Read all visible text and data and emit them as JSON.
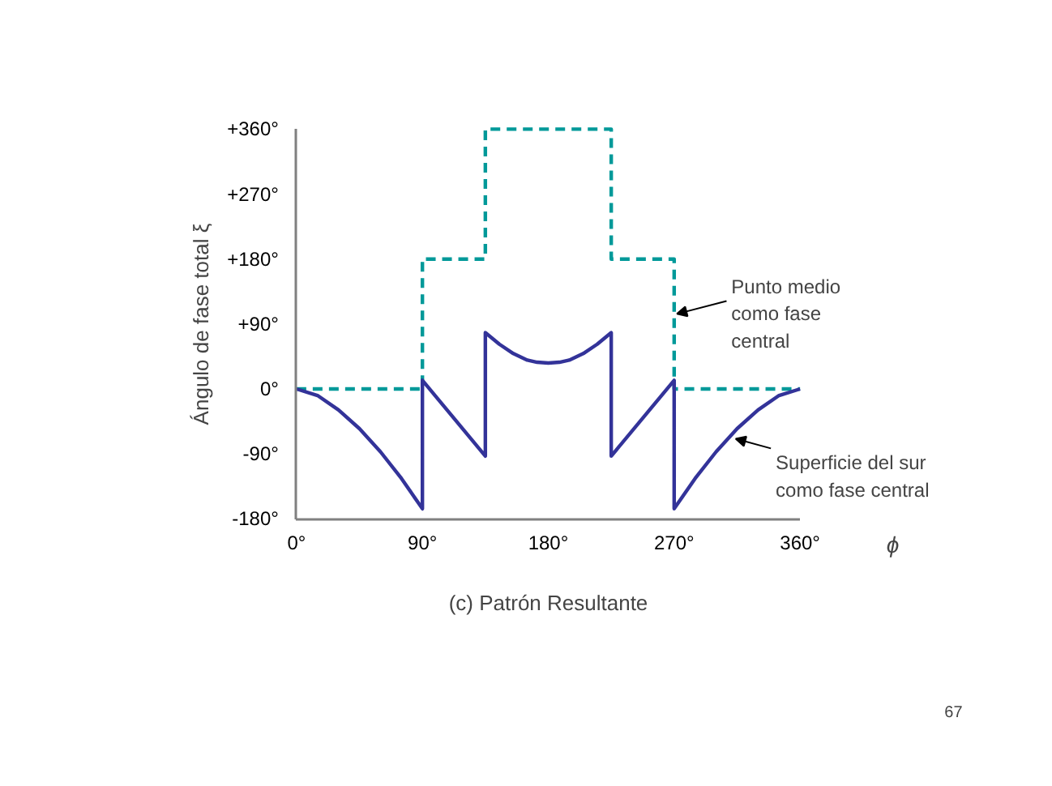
{
  "chart_data": {
    "type": "line",
    "title": "(c) Patrón Resultante",
    "xlabel": "ϕ",
    "ylabel": "Ángulo de fase total ξ",
    "xlim": [
      0,
      360
    ],
    "ylim": [
      -180,
      360
    ],
    "xticks": [
      {
        "value": 0,
        "label": "0°"
      },
      {
        "value": 90,
        "label": "90°"
      },
      {
        "value": 180,
        "label": "180°"
      },
      {
        "value": 270,
        "label": "270°"
      },
      {
        "value": 360,
        "label": "360°"
      }
    ],
    "yticks": [
      {
        "value": -180,
        "label": "-180°"
      },
      {
        "value": -90,
        "label": "-90°"
      },
      {
        "value": 0,
        "label": "0°"
      },
      {
        "value": 90,
        "label": "+90°"
      },
      {
        "value": 180,
        "label": "+180°"
      },
      {
        "value": 270,
        "label": "+270°"
      },
      {
        "value": 360,
        "label": "+360°"
      }
    ],
    "grid": false,
    "marker": "none",
    "series": [
      {
        "color": "#009999",
        "line_style": "dashed",
        "x": [
          0,
          90,
          90,
          135,
          135,
          225,
          225,
          270,
          270,
          360
        ],
        "values": [
          0,
          0,
          180,
          180,
          360,
          360,
          180,
          180,
          0,
          0
        ]
      },
      {
        "color": "#333399",
        "line_style": "solid",
        "x": [
          0,
          15,
          30,
          45,
          60,
          75,
          90,
          90,
          135,
          135,
          145,
          155,
          165,
          172,
          180,
          188,
          195,
          205,
          215,
          225,
          225,
          270,
          270,
          285,
          300,
          315,
          330,
          345,
          360
        ],
        "values": [
          0,
          -9,
          -29,
          -55,
          -87,
          -124,
          -166,
          12,
          -93,
          78,
          62,
          49,
          40,
          37,
          36,
          37,
          40,
          49,
          62,
          78,
          -93,
          12,
          -166,
          -124,
          -87,
          -55,
          -29,
          -9,
          0
        ]
      }
    ],
    "annotations": [
      {
        "text": "Punto medio\ncomo fase\ncentral",
        "x": 272,
        "y": 104
      },
      {
        "text": "Superficie del sur\ncomo fase central",
        "x": 314,
        "y": -69
      },
      "67"
    ]
  }
}
